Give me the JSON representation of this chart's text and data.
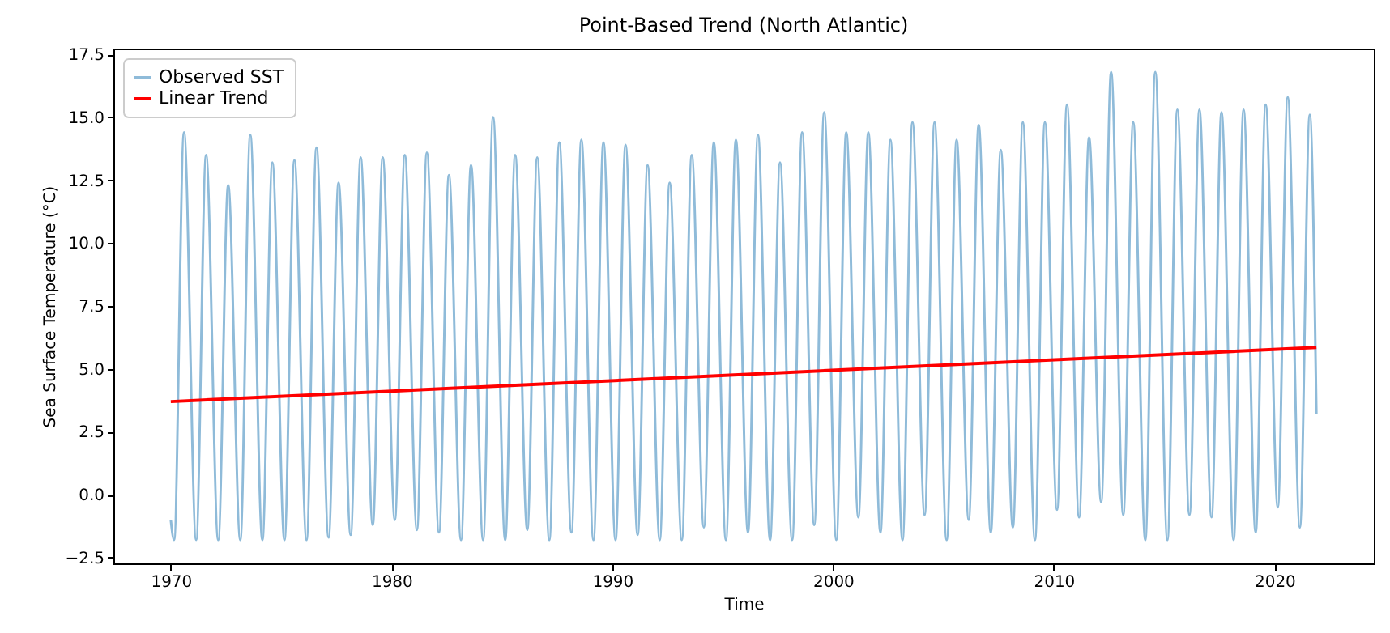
{
  "chart_data": {
    "type": "line",
    "title": "Point-Based Trend (North Atlantic)",
    "xlabel": "Time",
    "ylabel": "Sea Surface Temperature (°C)",
    "xlim": [
      1967.4,
      2024.5
    ],
    "xticks": [
      1970,
      1980,
      1990,
      2000,
      2010,
      2020
    ],
    "ylim": [
      -2.73,
      17.73
    ],
    "yticks": [
      {
        "value": -2.5,
        "label": "−2.5"
      },
      {
        "value": 0,
        "label": "0.0"
      },
      2.5,
      {
        "value": 5,
        "label": "5.0"
      },
      7.5,
      {
        "value": 10,
        "label": "10.0"
      },
      12.5,
      {
        "value": 15,
        "label": "15.0"
      },
      17.5
    ],
    "grid": false,
    "legend": "top left",
    "series": [
      {
        "name": "Observed SST",
        "color": "#8fbbd9",
        "x": [
          1970.0,
          1970.15,
          1970.6,
          1971.15,
          1971.6,
          1972.15,
          1972.6,
          1973.15,
          1973.6,
          1974.15,
          1974.6,
          1975.15,
          1975.6,
          1976.15,
          1976.6,
          1977.15,
          1977.6,
          1978.15,
          1978.6,
          1979.15,
          1979.6,
          1980.15,
          1980.6,
          1981.15,
          1981.6,
          1982.15,
          1982.6,
          1983.15,
          1983.6,
          1984.15,
          1984.6,
          1985.15,
          1985.6,
          1986.15,
          1986.6,
          1987.15,
          1987.6,
          1988.15,
          1988.6,
          1989.15,
          1989.6,
          1990.15,
          1990.6,
          1991.15,
          1991.6,
          1992.15,
          1992.6,
          1993.15,
          1993.6,
          1994.15,
          1994.6,
          1995.15,
          1995.6,
          1996.15,
          1996.6,
          1997.15,
          1997.6,
          1998.15,
          1998.6,
          1999.15,
          1999.6,
          2000.15,
          2000.6,
          2001.15,
          2001.6,
          2002.15,
          2002.6,
          2003.15,
          2003.6,
          2004.15,
          2004.6,
          2005.15,
          2005.6,
          2006.15,
          2006.6,
          2007.15,
          2007.6,
          2008.15,
          2008.6,
          2009.15,
          2009.6,
          2010.15,
          2010.6,
          2011.15,
          2011.6,
          2012.15,
          2012.6,
          2013.15,
          2013.6,
          2014.15,
          2014.6,
          2015.15,
          2015.6,
          2016.15,
          2016.6,
          2017.15,
          2017.6,
          2018.15,
          2018.6,
          2019.15,
          2019.6,
          2020.15,
          2020.6,
          2021.15,
          2021.6,
          2021.9
        ],
        "values": [
          -1.0,
          -1.8,
          14.4,
          -1.8,
          13.5,
          -1.8,
          12.3,
          -1.8,
          14.3,
          -1.8,
          13.2,
          -1.8,
          13.3,
          -1.8,
          13.8,
          -1.7,
          12.4,
          -1.6,
          13.4,
          -1.2,
          13.4,
          -1.0,
          13.5,
          -1.4,
          13.6,
          -1.5,
          12.7,
          -1.8,
          13.1,
          -1.8,
          15.0,
          -1.8,
          13.5,
          -1.4,
          13.4,
          -1.8,
          14.0,
          -1.5,
          14.1,
          -1.8,
          14.0,
          -1.8,
          13.9,
          -1.6,
          13.1,
          -1.8,
          12.4,
          -1.8,
          13.5,
          -1.3,
          14.0,
          -1.8,
          14.1,
          -1.5,
          14.3,
          -1.8,
          13.2,
          -1.8,
          14.4,
          -1.2,
          15.2,
          -1.8,
          14.4,
          -0.9,
          14.4,
          -1.5,
          14.1,
          -1.8,
          14.8,
          -0.8,
          14.8,
          -1.8,
          14.1,
          -1.0,
          14.7,
          -1.5,
          13.7,
          -1.3,
          14.8,
          -1.8,
          14.8,
          -0.6,
          15.5,
          -0.9,
          14.2,
          -0.3,
          16.8,
          -0.8,
          14.8,
          -1.8,
          16.8,
          -1.8,
          15.3,
          -0.8,
          15.3,
          -0.9,
          15.2,
          -1.8,
          15.3,
          -1.5,
          15.5,
          -0.5,
          15.8,
          -1.3,
          15.1,
          3.2
        ]
      },
      {
        "name": "Linear Trend",
        "color": "#ff0000",
        "x": [
          1970.0,
          2021.9
        ],
        "values": [
          3.7,
          5.85
        ]
      }
    ]
  }
}
